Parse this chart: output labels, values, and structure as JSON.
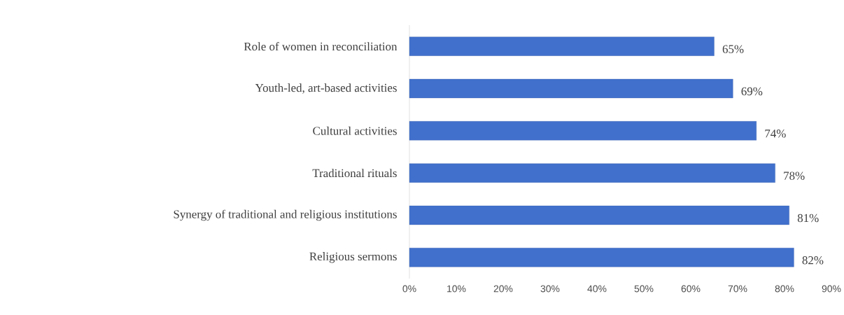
{
  "chart_data": {
    "type": "bar",
    "orientation": "horizontal",
    "categories": [
      "Role of women in reconciliation",
      "Youth-led, art-based activities",
      "Cultural activities",
      "Traditional rituals",
      "Synergy of traditional and religious institutions",
      "Religious sermons"
    ],
    "values": [
      65,
      69,
      74,
      78,
      81,
      82
    ],
    "value_labels": [
      "65%",
      "69%",
      "74%",
      "78%",
      "81%",
      "82%"
    ],
    "color": "#4170cc",
    "xlim": [
      0,
      90
    ],
    "xticks": [
      {
        "value": 0,
        "label": "0%"
      },
      {
        "value": 10,
        "label": "10%"
      },
      {
        "value": 20,
        "label": "20%"
      },
      {
        "value": 30,
        "label": "30%"
      },
      {
        "value": 40,
        "label": "40%"
      },
      {
        "value": 50,
        "label": "50%"
      },
      {
        "value": 60,
        "label": "60%"
      },
      {
        "value": 70,
        "label": "70%"
      },
      {
        "value": 80,
        "label": "80%"
      },
      {
        "value": 90,
        "label": "90%"
      }
    ],
    "grid": false
  }
}
